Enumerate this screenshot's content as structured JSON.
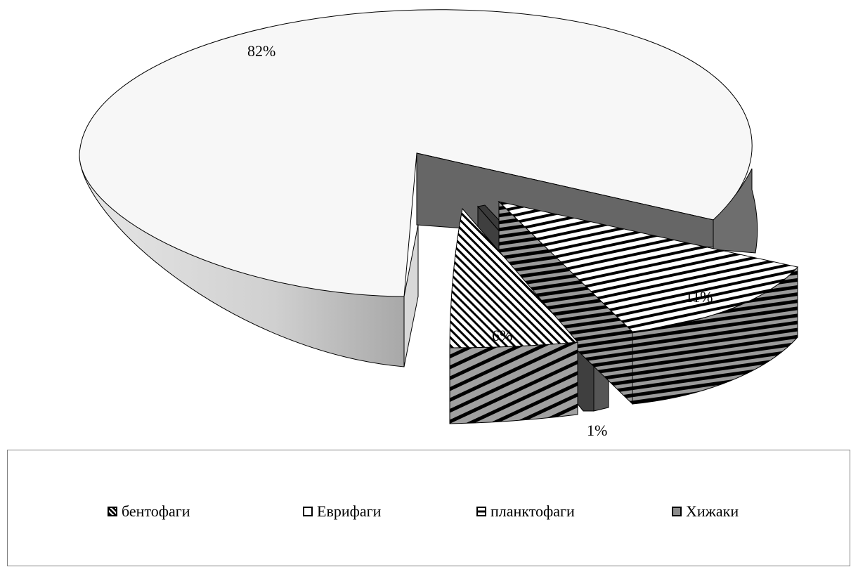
{
  "chart_data": {
    "type": "pie",
    "title": "",
    "slices": [
      {
        "name": "бентофаги",
        "value": 6,
        "label": "6%"
      },
      {
        "name": "Еврифаги",
        "value": 82,
        "label": "82%"
      },
      {
        "name": "планктофаги",
        "value": 11,
        "label": "11%"
      },
      {
        "name": "Хижаки",
        "value": 1,
        "label": "1%"
      }
    ],
    "legend_position": "bottom",
    "style": "3d-exploded"
  },
  "legend": {
    "items": [
      {
        "label": "бентофаги",
        "pattern": "diagonal-hatch"
      },
      {
        "label": "Еврифаги",
        "pattern": "white"
      },
      {
        "label": "планктофаги",
        "pattern": "horizontal-stripes"
      },
      {
        "label": "Хижаки",
        "pattern": "gray"
      }
    ]
  },
  "colors": {
    "evry_top": "#f7f7f7",
    "evry_side": "#c8c8c8",
    "hyzh": "#4d4d4d",
    "outline": "#000000"
  }
}
